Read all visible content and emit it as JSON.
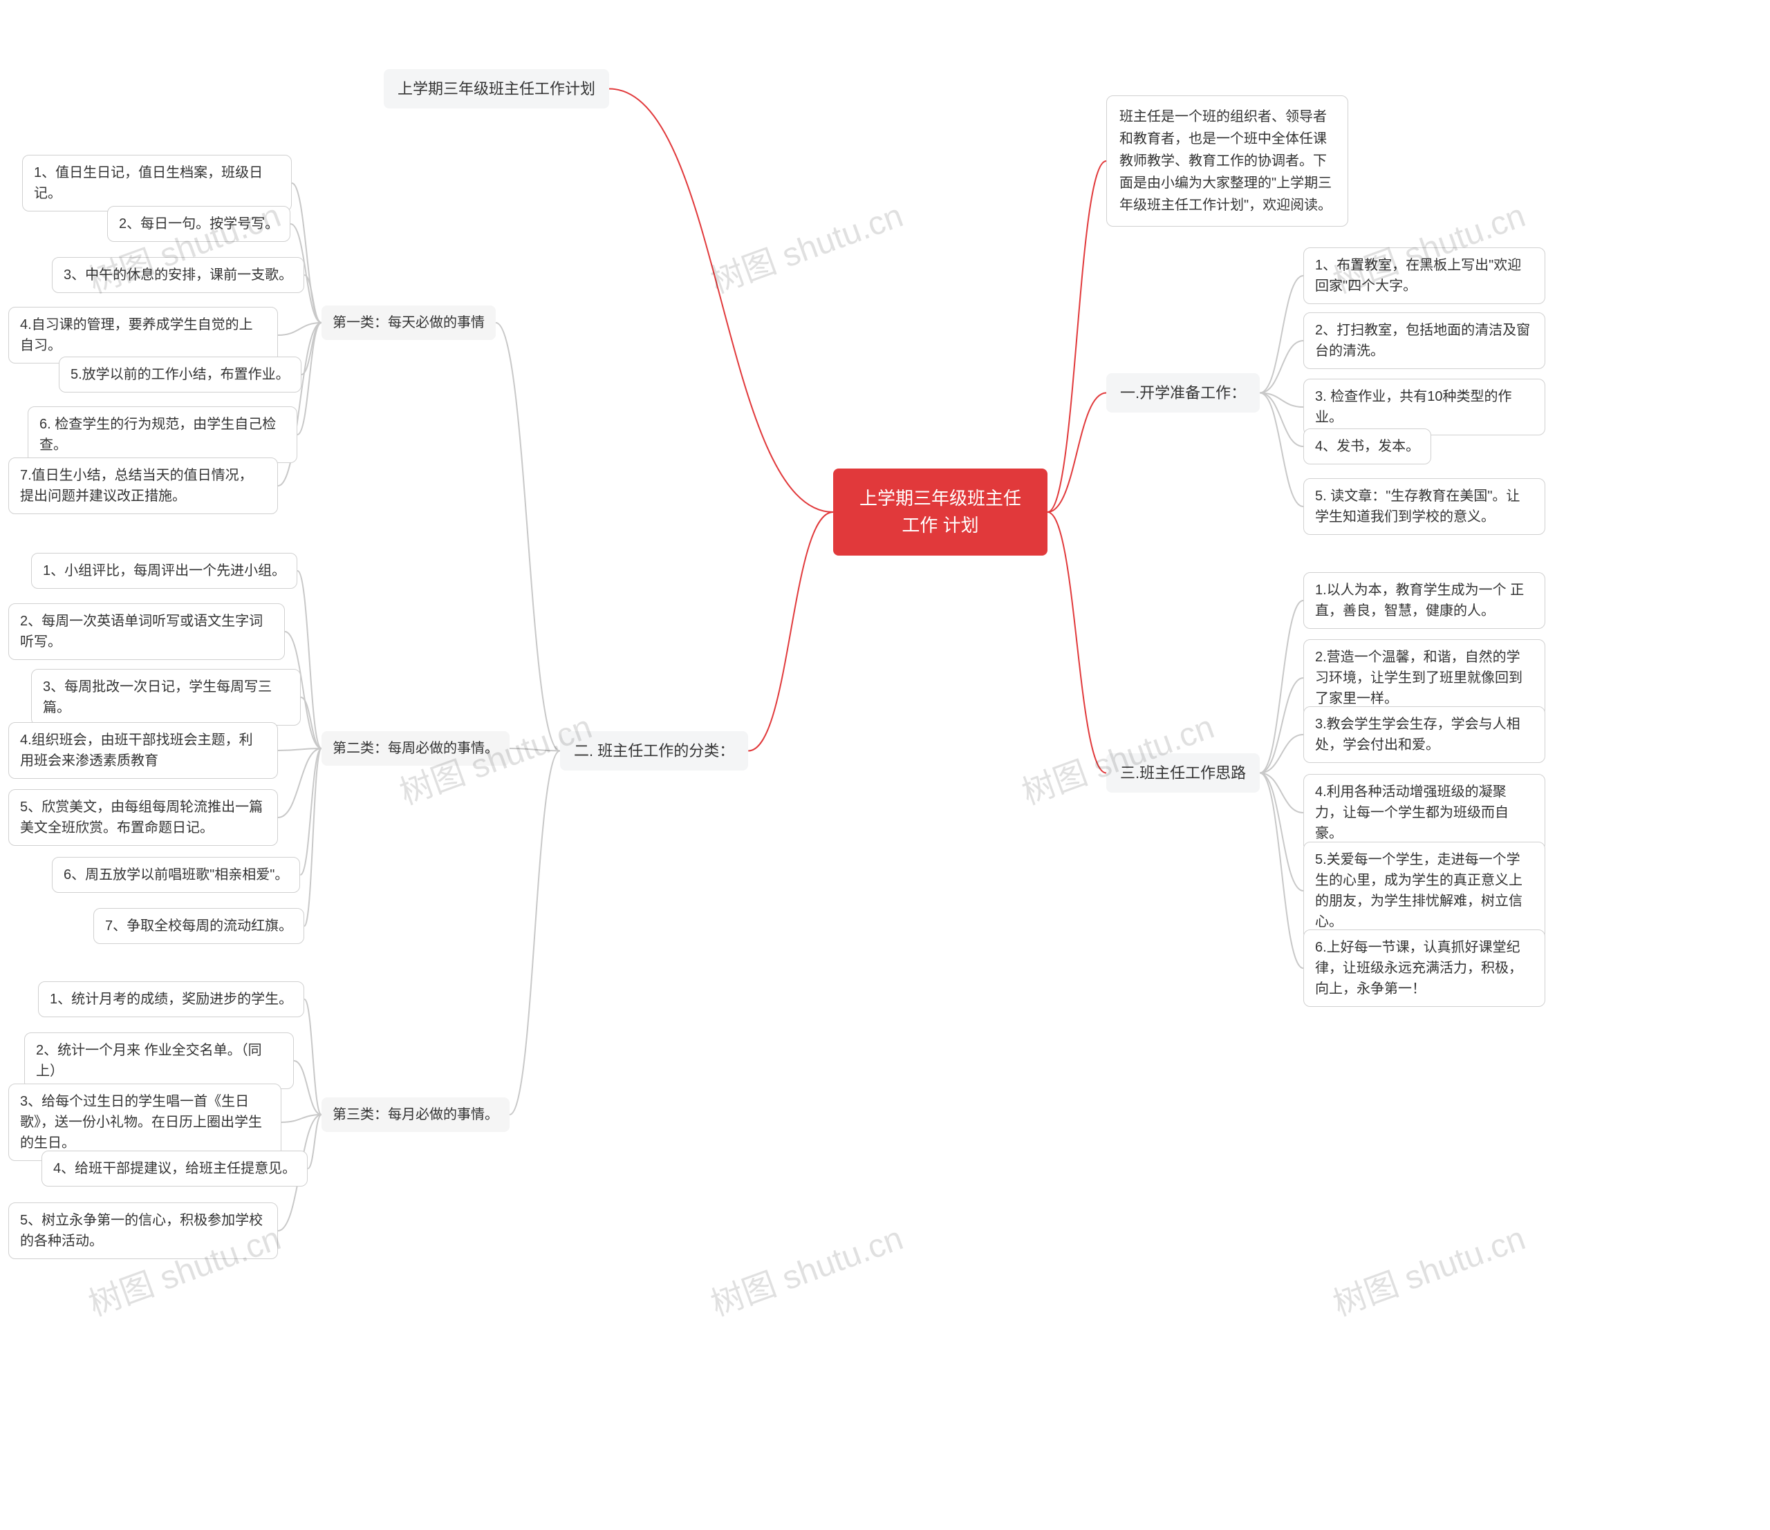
{
  "root": "上学期三年级班主任工作\n计划",
  "intro": "班主任是一个班的组织者、领导者和教育者，也是一个班中全体任课教师教学、教育工作的协调者。下面是由小编为大家整理的\"上学期三年级班主任工作计划\"，欢迎阅读。",
  "left": {
    "titleTop": "上学期三年级班主任工作计划",
    "section2": "二. 班主任工作的分类：",
    "cat1": {
      "label": "第一类：每天必做的事情",
      "items": [
        "1、值日生日记，值日生档案，班级日记。",
        "2、每日一句。按学号写。",
        "3、中午的休息的安排，课前一支歌。",
        "4.自习课的管理，要养成学生自觉的上自习。",
        "5.放学以前的工作小结，布置作业。",
        "6. 检查学生的行为规范，由学生自己检查。",
        "7.值日生小结，总结当天的值日情况，提出问题并建议改正措施。"
      ]
    },
    "cat2": {
      "label": "第二类：每周必做的事情。",
      "items": [
        "1、小组评比，每周评出一个先进小组。",
        "2、每周一次英语单词听写或语文生字词听写。",
        "3、每周批改一次日记，学生每周写三篇。",
        "4.组织班会，由班干部找班会主题，利用班会来渗透素质教育",
        "5、欣赏美文，由每组每周轮流推出一篇美文全班欣赏。布置命题日记。",
        "6、周五放学以前唱班歌\"相亲相爱\"。",
        "7、争取全校每周的流动红旗。"
      ]
    },
    "cat3": {
      "label": "第三类：每月必做的事情。",
      "items": [
        "1、统计月考的成绩，奖励进步的学生。",
        "2、统计一个月来 作业全交名单。（同上）",
        "3、给每个过生日的学生唱一首《生日歌》，送一份小礼物。在日历上圈出学生的生日。",
        "4、给班干部提建议，给班主任提意见。",
        "5、树立永争第一的信心，积极参加学校的各种活动。"
      ]
    }
  },
  "right": {
    "section1": {
      "label": "一.开学准备工作：",
      "items": [
        "1、布置教室，在黑板上写出\"欢迎回家\"四个大字。",
        "2、打扫教室，包括地面的清洁及窗台的清洗。",
        "3. 检查作业，共有10种类型的作业。",
        "4、发书，发本。",
        "5. 读文章：\"生存教育在美国\"。让学生知道我们到学校的意义。"
      ]
    },
    "section3": {
      "label": "三.班主任工作思路",
      "items": [
        "1.以人为本，教育学生成为一个 正直，善良，智慧，健康的人。",
        "2.营造一个温馨，和谐，自然的学习环境，让学生到了班里就像回到了家里一样。",
        "3.教会学生学会生存，学会与人相处，学会付出和爱。",
        "4.利用各种活动增强班级的凝聚力，让每一个学生都为班级而自豪。",
        "5.关爱每一个学生，走进每一个学生的心里，成为学生的真正意义上的朋友，为学生排忧解难，树立信心。",
        "6.上好每一节课，认真抓好课堂纪律，让班级永远充满活力，积极，向上，永争第一！"
      ]
    }
  },
  "colors": {
    "root_bg": "#e1393b",
    "root_text": "#ffffff",
    "branch_bg": "#f4f5f6",
    "leaf_border": "#d0d0d0",
    "line": "#c8c8c8",
    "line_red": "#e1393b",
    "watermark": "rgba(0,0,0,0.12)"
  },
  "watermark": "树图 shutu.cn"
}
